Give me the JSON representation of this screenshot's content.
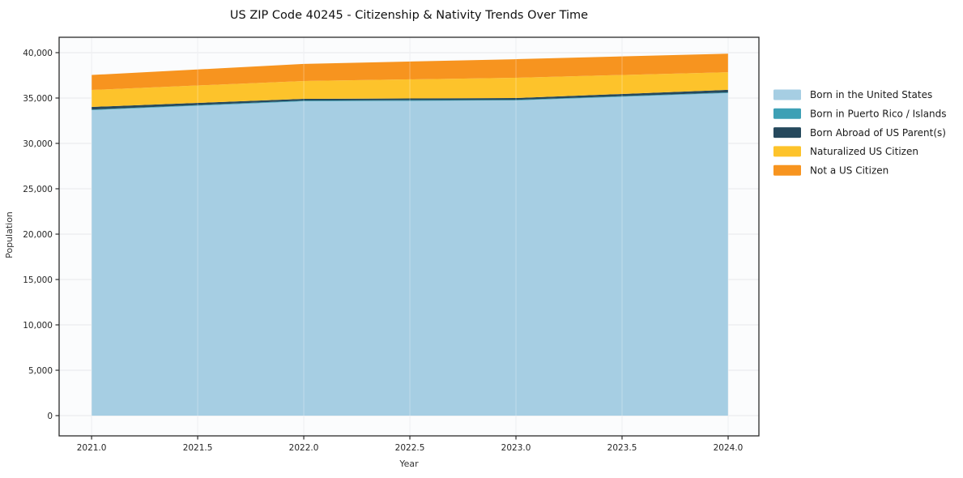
{
  "chart_data": {
    "type": "area",
    "stacked": true,
    "title": "US ZIP Code 40245 - Citizenship & Nativity Trends Over Time",
    "xlabel": "Year",
    "ylabel": "Population",
    "x": [
      2021,
      2022,
      2023,
      2024
    ],
    "series": [
      {
        "name": "Born in the United States",
        "color": "#a6cee3",
        "values": [
          33660,
          34640,
          34730,
          35550
        ]
      },
      {
        "name": "Born in Puerto Rico / Islands",
        "color": "#3da0b5",
        "values": [
          70,
          80,
          70,
          70
        ]
      },
      {
        "name": "Born Abroad of US Parent(s)",
        "color": "#26495d",
        "values": [
          290,
          190,
          200,
          280
        ]
      },
      {
        "name": "Naturalized US Citizen",
        "color": "#fdc32b",
        "values": [
          1870,
          1970,
          2230,
          1950
        ]
      },
      {
        "name": "Not a US Citizen",
        "color": "#f7941f",
        "values": [
          1650,
          1880,
          2050,
          2040
        ]
      }
    ],
    "totals": [
      37540,
      38760,
      39280,
      39890
    ],
    "x_tick_labels": [
      "2021.0",
      "2021.5",
      "2022.0",
      "2022.5",
      "2023.0",
      "2023.5",
      "2024.0"
    ],
    "x_tick_values": [
      2021,
      2021.5,
      2022,
      2022.5,
      2023,
      2023.5,
      2024
    ],
    "y_tick_labels": [
      "0",
      "5,000",
      "10,000",
      "15,000",
      "20,000",
      "25,000",
      "30,000",
      "35,000",
      "40,000"
    ],
    "y_tick_values": [
      0,
      5000,
      10000,
      15000,
      20000,
      25000,
      30000,
      35000,
      40000
    ],
    "xlim": [
      2020.847,
      2024.145
    ],
    "ylim": [
      -2232,
      41696
    ],
    "grid": true,
    "legend_position": "right-outside",
    "colors": {
      "plot_background": "#fbfcfd",
      "grid": "#e7e9ec",
      "spine": "#2a2a2a",
      "tick_text": "#262626",
      "title_text": "#111111",
      "legend_text": "#1a1a1a"
    }
  }
}
